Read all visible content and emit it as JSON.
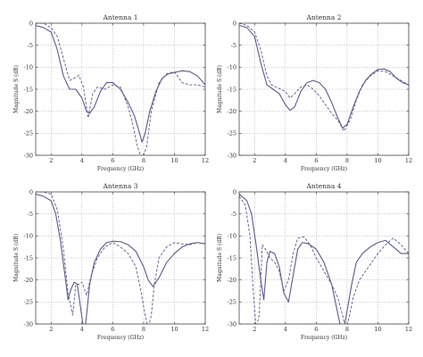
{
  "chart_data": [
    {
      "type": "line",
      "title": "Antenna 1",
      "xlabel": "Frequency (GHz)",
      "ylabel": "Magnitude S (dB)",
      "xlim": [
        1,
        12
      ],
      "ylim": [
        -30,
        0
      ],
      "xticks": [
        2,
        4,
        6,
        8,
        10,
        12
      ],
      "yticks": [
        0,
        -5,
        -10,
        -15,
        -20,
        -25,
        -30
      ],
      "grid": true,
      "series": [
        {
          "style": "solid",
          "color": "#5a5a8c",
          "x": [
            1,
            1.5,
            2,
            2.4,
            2.8,
            3.2,
            3.6,
            4,
            4.3,
            4.5,
            4.8,
            5.2,
            5.6,
            6,
            6.5,
            7,
            7.4,
            7.7,
            7.9,
            8.1,
            8.4,
            8.8,
            9.2,
            9.6,
            10,
            10.5,
            11,
            11.5,
            12
          ],
          "y": [
            -0.5,
            -1,
            -2,
            -6,
            -12,
            -15,
            -15,
            -17,
            -20,
            -20.5,
            -19,
            -15.5,
            -13.5,
            -13.5,
            -15,
            -18,
            -21,
            -24.5,
            -27,
            -25,
            -20,
            -15.5,
            -12.5,
            -11.5,
            -11.2,
            -10.8,
            -11,
            -12,
            -14
          ]
        },
        {
          "style": "dashed",
          "color": "#5a5a8c",
          "x": [
            1,
            1.5,
            2,
            2.4,
            2.8,
            3.2,
            3.5,
            3.8,
            4.1,
            4.4,
            4.7,
            5,
            5.5,
            6,
            6.5,
            7,
            7.3,
            7.6,
            7.9,
            8.2,
            8.5,
            9,
            9.5,
            10,
            10.5,
            11,
            11.5,
            12
          ],
          "y": [
            0,
            0,
            -1,
            -3,
            -8,
            -13,
            -12.5,
            -11.8,
            -14.5,
            -21.5,
            -16,
            -14.5,
            -15,
            -14,
            -14.5,
            -19,
            -23,
            -28,
            -31,
            -28,
            -20,
            -13.5,
            -11.5,
            -11,
            -13.5,
            -14,
            -14,
            -14.5
          ]
        }
      ]
    },
    {
      "type": "line",
      "title": "Antenna 2",
      "xlabel": "Frequency (GHz)",
      "ylabel": "Magnitude S (dB)",
      "xlim": [
        1,
        12
      ],
      "ylim": [
        -30,
        0
      ],
      "xticks": [
        2,
        4,
        6,
        8,
        10,
        12
      ],
      "yticks": [
        0,
        -5,
        -10,
        -15,
        -20,
        -25,
        -30
      ],
      "grid": true,
      "series": [
        {
          "style": "solid",
          "color": "#5a5a8c",
          "x": [
            1,
            1.5,
            2,
            2.4,
            2.8,
            3.2,
            3.6,
            4,
            4.3,
            4.6,
            5,
            5.4,
            5.8,
            6.2,
            6.6,
            7,
            7.4,
            7.7,
            8,
            8.4,
            8.8,
            9.2,
            9.6,
            10,
            10.4,
            10.8,
            11.2,
            11.6,
            12
          ],
          "y": [
            -0.5,
            -1,
            -3,
            -9,
            -14,
            -15,
            -16,
            -18.5,
            -19.8,
            -19,
            -15.5,
            -13.5,
            -13,
            -13.5,
            -15,
            -18,
            -21.5,
            -23.8,
            -23,
            -19,
            -15.5,
            -13,
            -11.5,
            -10.5,
            -10.4,
            -11,
            -12.5,
            -13.5,
            -14
          ]
        },
        {
          "style": "dashed",
          "color": "#5a5a8c",
          "x": [
            1,
            1.5,
            2,
            2.4,
            2.8,
            3.1,
            3.4,
            3.7,
            4,
            4.3,
            4.6,
            5,
            5.4,
            5.8,
            6.2,
            6.6,
            7,
            7.4,
            7.8,
            8.2,
            8.6,
            9,
            9.5,
            10,
            10.5,
            11,
            11.5,
            12
          ],
          "y": [
            0,
            -0.5,
            -2,
            -6,
            -12,
            -14,
            -14.5,
            -15,
            -15.5,
            -17,
            -16,
            -14.5,
            -14,
            -15,
            -16.5,
            -18.5,
            -20.5,
            -22,
            -24.5,
            -22,
            -17.5,
            -14,
            -12,
            -10.8,
            -11,
            -12,
            -13,
            -14
          ]
        }
      ]
    },
    {
      "type": "line",
      "title": "Antenna 3",
      "xlabel": "Frequency (GHz)",
      "ylabel": "Magnitude S (dB)",
      "xlim": [
        1,
        12
      ],
      "ylim": [
        -30,
        0
      ],
      "xticks": [
        2,
        4,
        6,
        8,
        10,
        12
      ],
      "yticks": [
        0,
        -5,
        -10,
        -15,
        -20,
        -25,
        -30
      ],
      "grid": true,
      "series": [
        {
          "style": "solid",
          "color": "#5a5a8c",
          "x": [
            1,
            1.5,
            2,
            2.3,
            2.6,
            2.9,
            3.1,
            3.3,
            3.5,
            3.7,
            3.9,
            4.1,
            4.2,
            4.3,
            4.5,
            4.8,
            5.2,
            5.6,
            6,
            6.5,
            7,
            7.5,
            8,
            8.3,
            8.6,
            9,
            9.5,
            10,
            10.5,
            11,
            11.5,
            12
          ],
          "y": [
            -0.5,
            -1,
            -2,
            -5,
            -11,
            -19,
            -24.5,
            -22,
            -20.5,
            -21,
            -26,
            -31,
            -31,
            -28,
            -21,
            -16,
            -13,
            -11.5,
            -11.2,
            -11.3,
            -12,
            -13.5,
            -17,
            -20,
            -21.5,
            -19.5,
            -16,
            -14,
            -12.5,
            -11.8,
            -11.5,
            -11.8
          ]
        },
        {
          "style": "dashed",
          "color": "#5a5a8c",
          "x": [
            1,
            1.5,
            2,
            2.4,
            2.8,
            3.1,
            3.4,
            3.6,
            3.8,
            4,
            4.3,
            4.6,
            5,
            5.5,
            6,
            6.5,
            7,
            7.5,
            7.8,
            8.1,
            8.3,
            8.5,
            8.7,
            9,
            9.5,
            10,
            10.5,
            11,
            11.5,
            12
          ],
          "y": [
            0,
            0,
            -0.5,
            -4,
            -13,
            -23,
            -28,
            -21,
            -21,
            -20.5,
            -23.5,
            -19,
            -15,
            -12.5,
            -11.5,
            -12.5,
            -14,
            -17,
            -22,
            -28,
            -31,
            -28,
            -21,
            -15,
            -12.5,
            -11.5,
            -11.8,
            -12,
            -11.5,
            -11.8
          ]
        }
      ]
    },
    {
      "type": "line",
      "title": "Antenna 4",
      "xlabel": "Frequency (GHz)",
      "ylabel": "Magnitude S (dB)",
      "xlim": [
        1,
        12
      ],
      "ylim": [
        -30,
        0
      ],
      "xticks": [
        2,
        4,
        6,
        8,
        10,
        12
      ],
      "yticks": [
        0,
        -5,
        -10,
        -15,
        -20,
        -25,
        -30
      ],
      "grid": true,
      "series": [
        {
          "style": "solid",
          "color": "#5a5a8c",
          "x": [
            1,
            1.5,
            1.8,
            2.1,
            2.4,
            2.6,
            2.8,
            3,
            3.3,
            3.6,
            3.9,
            4.2,
            4.5,
            4.8,
            5.1,
            5.5,
            6,
            6.5,
            7,
            7.3,
            7.6,
            7.8,
            8,
            8.3,
            8.6,
            9,
            9.5,
            10,
            10.5,
            11,
            11.5,
            12
          ],
          "y": [
            -0.5,
            -2,
            -5,
            -12,
            -20,
            -24.5,
            -16,
            -13.5,
            -14,
            -17,
            -23,
            -25,
            -19,
            -13,
            -11.5,
            -11.8,
            -13,
            -16,
            -21,
            -26,
            -31,
            -31,
            -27,
            -21,
            -16,
            -14,
            -12.5,
            -11.5,
            -11,
            -12.5,
            -14,
            -14
          ]
        },
        {
          "style": "dashed",
          "color": "#5a5a8c",
          "x": [
            1,
            1.4,
            1.7,
            1.9,
            2.1,
            2.3,
            2.5,
            2.7,
            3,
            3.3,
            3.6,
            3.9,
            4.2,
            4.5,
            4.8,
            5.2,
            5.6,
            6,
            6.5,
            7,
            7.4,
            7.7,
            7.9,
            8.1,
            8.4,
            8.8,
            9.2,
            9.6,
            10,
            10.5,
            11,
            11.5,
            12
          ],
          "y": [
            -1,
            -3,
            -10,
            -22,
            -31,
            -28,
            -12,
            -13,
            -15,
            -16,
            -18,
            -22.5,
            -20,
            -14,
            -10.5,
            -10.2,
            -12,
            -15,
            -18,
            -21,
            -24,
            -28,
            -31,
            -29,
            -24,
            -20,
            -18,
            -16,
            -14,
            -12,
            -10.5,
            -12,
            -14
          ]
        }
      ]
    }
  ]
}
